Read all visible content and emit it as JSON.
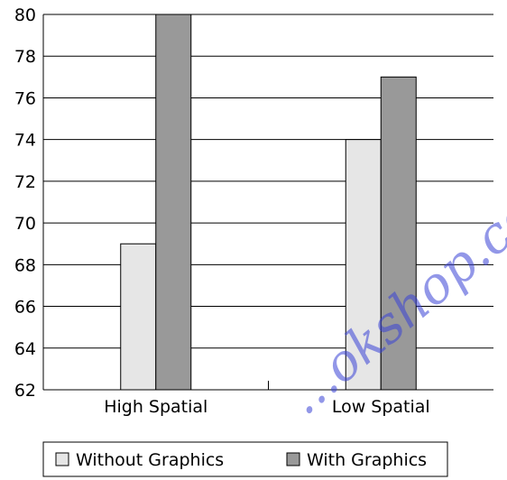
{
  "chart_data": {
    "type": "bar",
    "categories": [
      "High Spatial",
      "Low Spatial"
    ],
    "series": [
      {
        "name": "Without Graphics",
        "values": [
          69,
          74
        ],
        "color": "#e6e6e6"
      },
      {
        "name": "With Graphics",
        "values": [
          80,
          77
        ],
        "color": "#999999"
      }
    ],
    "ylim": [
      62,
      80
    ],
    "yticks": [
      "62",
      "64",
      "66",
      "68",
      "70",
      "72",
      "74",
      "76",
      "78",
      "80"
    ],
    "grid": true,
    "legend_position": "bottom-left",
    "title": "",
    "xlabel": "",
    "ylabel": ""
  },
  "watermark": {
    "text": "...okshop.com"
  }
}
